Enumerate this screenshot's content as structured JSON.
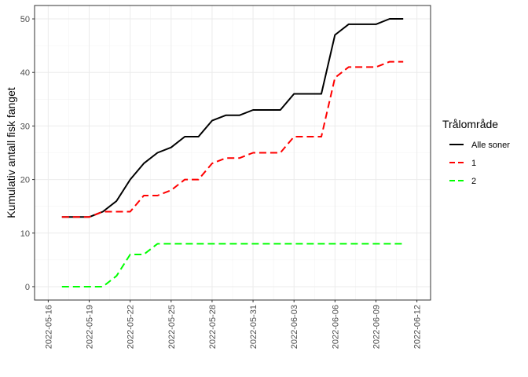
{
  "chart_data": {
    "type": "line",
    "ylabel": "Kumulativ antall fisk fanget",
    "xlabel": "",
    "x_ticks": [
      "2022-05-16",
      "2022-05-19",
      "2022-05-22",
      "2022-05-25",
      "2022-05-28",
      "2022-05-31",
      "2022-06-03",
      "2022-06-06",
      "2022-06-09",
      "2022-06-12"
    ],
    "y_ticks": [
      0,
      10,
      20,
      30,
      40,
      50
    ],
    "xlim": [
      "2022-05-15",
      "2022-06-13"
    ],
    "ylim": [
      -2.5,
      52.5
    ],
    "grid": true,
    "legend": {
      "title": "Trålområde",
      "position": "right"
    },
    "series": [
      {
        "name": "Alle soner",
        "color": "#000000",
        "dash": "solid",
        "x": [
          "2022-05-17",
          "2022-05-18",
          "2022-05-19",
          "2022-05-20",
          "2022-05-21",
          "2022-05-22",
          "2022-05-23",
          "2022-05-24",
          "2022-05-25",
          "2022-05-26",
          "2022-05-27",
          "2022-05-28",
          "2022-05-29",
          "2022-05-30",
          "2022-05-31",
          "2022-06-01",
          "2022-06-02",
          "2022-06-03",
          "2022-06-04",
          "2022-06-05",
          "2022-06-06",
          "2022-06-07",
          "2022-06-08",
          "2022-06-09",
          "2022-06-10",
          "2022-06-11"
        ],
        "values": [
          13,
          13,
          13,
          14,
          16,
          20,
          23,
          25,
          26,
          28,
          28,
          31,
          32,
          32,
          33,
          33,
          33,
          36,
          36,
          36,
          47,
          49,
          49,
          49,
          50,
          50
        ]
      },
      {
        "name": "1",
        "color": "#ff0000",
        "dash": "dashed",
        "x": [
          "2022-05-17",
          "2022-05-18",
          "2022-05-19",
          "2022-05-20",
          "2022-05-21",
          "2022-05-22",
          "2022-05-23",
          "2022-05-24",
          "2022-05-25",
          "2022-05-26",
          "2022-05-27",
          "2022-05-28",
          "2022-05-29",
          "2022-05-30",
          "2022-05-31",
          "2022-06-01",
          "2022-06-02",
          "2022-06-03",
          "2022-06-04",
          "2022-06-05",
          "2022-06-06",
          "2022-06-07",
          "2022-06-08",
          "2022-06-09",
          "2022-06-10",
          "2022-06-11"
        ],
        "values": [
          13,
          13,
          13,
          14,
          14,
          14,
          17,
          17,
          18,
          20,
          20,
          23,
          24,
          24,
          25,
          25,
          25,
          28,
          28,
          28,
          39,
          41,
          41,
          41,
          42,
          42
        ]
      },
      {
        "name": "2",
        "color": "#00ff00",
        "dash": "dashed",
        "x": [
          "2022-05-17",
          "2022-05-18",
          "2022-05-19",
          "2022-05-20",
          "2022-05-21",
          "2022-05-22",
          "2022-05-23",
          "2022-05-24",
          "2022-05-25",
          "2022-05-26",
          "2022-05-27",
          "2022-05-28",
          "2022-05-29",
          "2022-05-30",
          "2022-05-31",
          "2022-06-01",
          "2022-06-02",
          "2022-06-03",
          "2022-06-04",
          "2022-06-05",
          "2022-06-06",
          "2022-06-07",
          "2022-06-08",
          "2022-06-09",
          "2022-06-10",
          "2022-06-11"
        ],
        "values": [
          0,
          0,
          0,
          0,
          2,
          6,
          6,
          8,
          8,
          8,
          8,
          8,
          8,
          8,
          8,
          8,
          8,
          8,
          8,
          8,
          8,
          8,
          8,
          8,
          8,
          8
        ]
      }
    ]
  }
}
